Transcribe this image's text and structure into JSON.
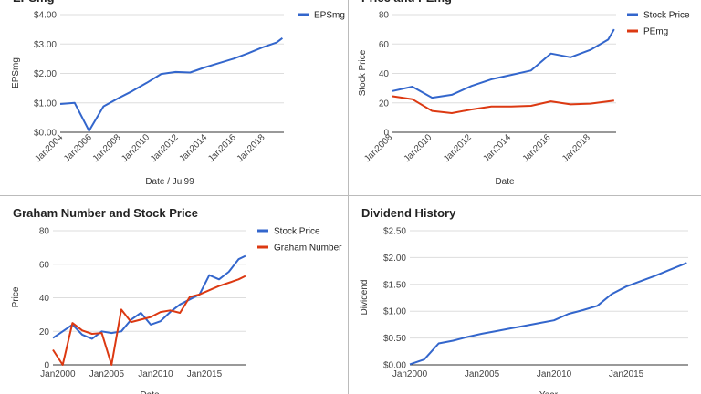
{
  "chart_data": [
    {
      "type": "line",
      "title": "EPSmg",
      "xlabel": "Date / Jul99",
      "ylabel": "EPSmg",
      "x_ticks": [
        "Jan2004",
        "Jan2006",
        "Jan2008",
        "Jan2010",
        "Jan2012",
        "Jan2014",
        "Jan2016",
        "Jan2018"
      ],
      "y_ticks": [
        "$0.00",
        "$1.00",
        "$2.00",
        "$3.00",
        "$4.00"
      ],
      "xlim": [
        2003.8,
        2019.3
      ],
      "ylim": [
        0,
        4
      ],
      "legend_position": "top-right",
      "series": [
        {
          "name": "EPSmg",
          "color": "#3366cc",
          "x": [
            2003.8,
            2004.8,
            2005.8,
            2006.8,
            2007.8,
            2008.8,
            2009.8,
            2010.8,
            2011.8,
            2012.8,
            2013.8,
            2014.8,
            2015.8,
            2016.8,
            2017.8,
            2018.8,
            2019.2
          ],
          "y": [
            0.96,
            1.0,
            0.05,
            0.88,
            1.15,
            1.4,
            1.68,
            1.98,
            2.05,
            2.03,
            2.2,
            2.35,
            2.5,
            2.68,
            2.88,
            3.05,
            3.2
          ]
        }
      ]
    },
    {
      "type": "line",
      "title": "Price and PEmg",
      "xlabel": "Date",
      "ylabel": "Stock Price",
      "x_ticks": [
        "Jan2008",
        "Jan2010",
        "Jan2012",
        "Jan2014",
        "Jan2016",
        "Jan2018"
      ],
      "y_ticks": [
        "0",
        "20",
        "40",
        "60",
        "80"
      ],
      "xlim": [
        2008,
        2019.3
      ],
      "ylim": [
        0,
        80
      ],
      "legend_position": "top-right",
      "series": [
        {
          "name": "Stock Price",
          "color": "#3366cc",
          "x": [
            2008,
            2009,
            2010,
            2011,
            2012,
            2013,
            2014,
            2015,
            2016,
            2017,
            2018,
            2018.9,
            2019.2
          ],
          "y": [
            28,
            31,
            23.5,
            25.5,
            31.5,
            36,
            39,
            42,
            53.5,
            51,
            56,
            63,
            70
          ]
        },
        {
          "name": "PEmg",
          "color": "#dc3912",
          "x": [
            2008,
            2009,
            2010,
            2011,
            2012,
            2013,
            2014,
            2015,
            2016,
            2017,
            2018,
            2019.2
          ],
          "y": [
            24.5,
            22.5,
            14.5,
            13,
            15.5,
            17.5,
            17.5,
            18,
            21,
            19,
            19.5,
            21.5
          ]
        }
      ]
    },
    {
      "type": "line",
      "title": "Graham Number and Stock Price",
      "xlabel": "Date",
      "ylabel": "Price",
      "x_ticks": [
        "Jan2000",
        "Jan2005",
        "Jan2010",
        "Jan2015"
      ],
      "y_ticks": [
        "0",
        "20",
        "40",
        "60",
        "80"
      ],
      "xlim": [
        1999.5,
        2019.3
      ],
      "ylim": [
        0,
        80
      ],
      "legend_position": "top-right",
      "series": [
        {
          "name": "Stock Price",
          "color": "#3366cc",
          "x": [
            1999.5,
            2000.5,
            2001.5,
            2002.5,
            2003.5,
            2004.5,
            2005.5,
            2006.5,
            2007.5,
            2008.5,
            2009.5,
            2010.5,
            2011.5,
            2012.5,
            2013.5,
            2014.5,
            2015.5,
            2016.5,
            2017.5,
            2018.5,
            2019.2
          ],
          "y": [
            16,
            20,
            24,
            18,
            15.5,
            20,
            19,
            20,
            27,
            31,
            24,
            26,
            31.5,
            36,
            39,
            42,
            53.5,
            51,
            55.5,
            63,
            65
          ]
        },
        {
          "name": "Graham Number",
          "color": "#dc3912",
          "x": [
            1999.5,
            2000.5,
            2001.5,
            2002.5,
            2003.5,
            2004.5,
            2005.5,
            2006.5,
            2007.5,
            2008.5,
            2009.5,
            2010.5,
            2011.5,
            2012.5,
            2013.5,
            2014.5,
            2015.5,
            2016.5,
            2017.5,
            2018.5,
            2019.2
          ],
          "y": [
            9,
            0,
            25,
            20.5,
            18.5,
            19,
            0,
            33,
            25.5,
            27,
            28.5,
            31.5,
            32.5,
            31,
            40.5,
            42,
            44.5,
            47,
            49,
            51,
            53
          ]
        }
      ]
    },
    {
      "type": "line",
      "title": "Dividend History",
      "xlabel": "Year",
      "ylabel": "Dividend",
      "x_ticks": [
        "Jan2000",
        "Jan2005",
        "Jan2010",
        "Jan2015"
      ],
      "y_ticks": [
        "$0.00",
        "$0.50",
        "$1.00",
        "$1.50",
        "$2.00",
        "$2.50"
      ],
      "xlim": [
        2000,
        2019.3
      ],
      "ylim": [
        0,
        2.5
      ],
      "series": [
        {
          "name": "Dividend",
          "color": "#3366cc",
          "x": [
            2000,
            2001,
            2002,
            2003,
            2004,
            2005,
            2006,
            2007,
            2008,
            2009,
            2010,
            2011,
            2012,
            2013,
            2014,
            2015,
            2016,
            2017,
            2018,
            2019.2
          ],
          "y": [
            0.01,
            0.1,
            0.4,
            0.45,
            0.52,
            0.58,
            0.63,
            0.68,
            0.73,
            0.78,
            0.83,
            0.95,
            1.02,
            1.1,
            1.32,
            1.46,
            1.56,
            1.66,
            1.77,
            1.9
          ]
        }
      ]
    }
  ]
}
